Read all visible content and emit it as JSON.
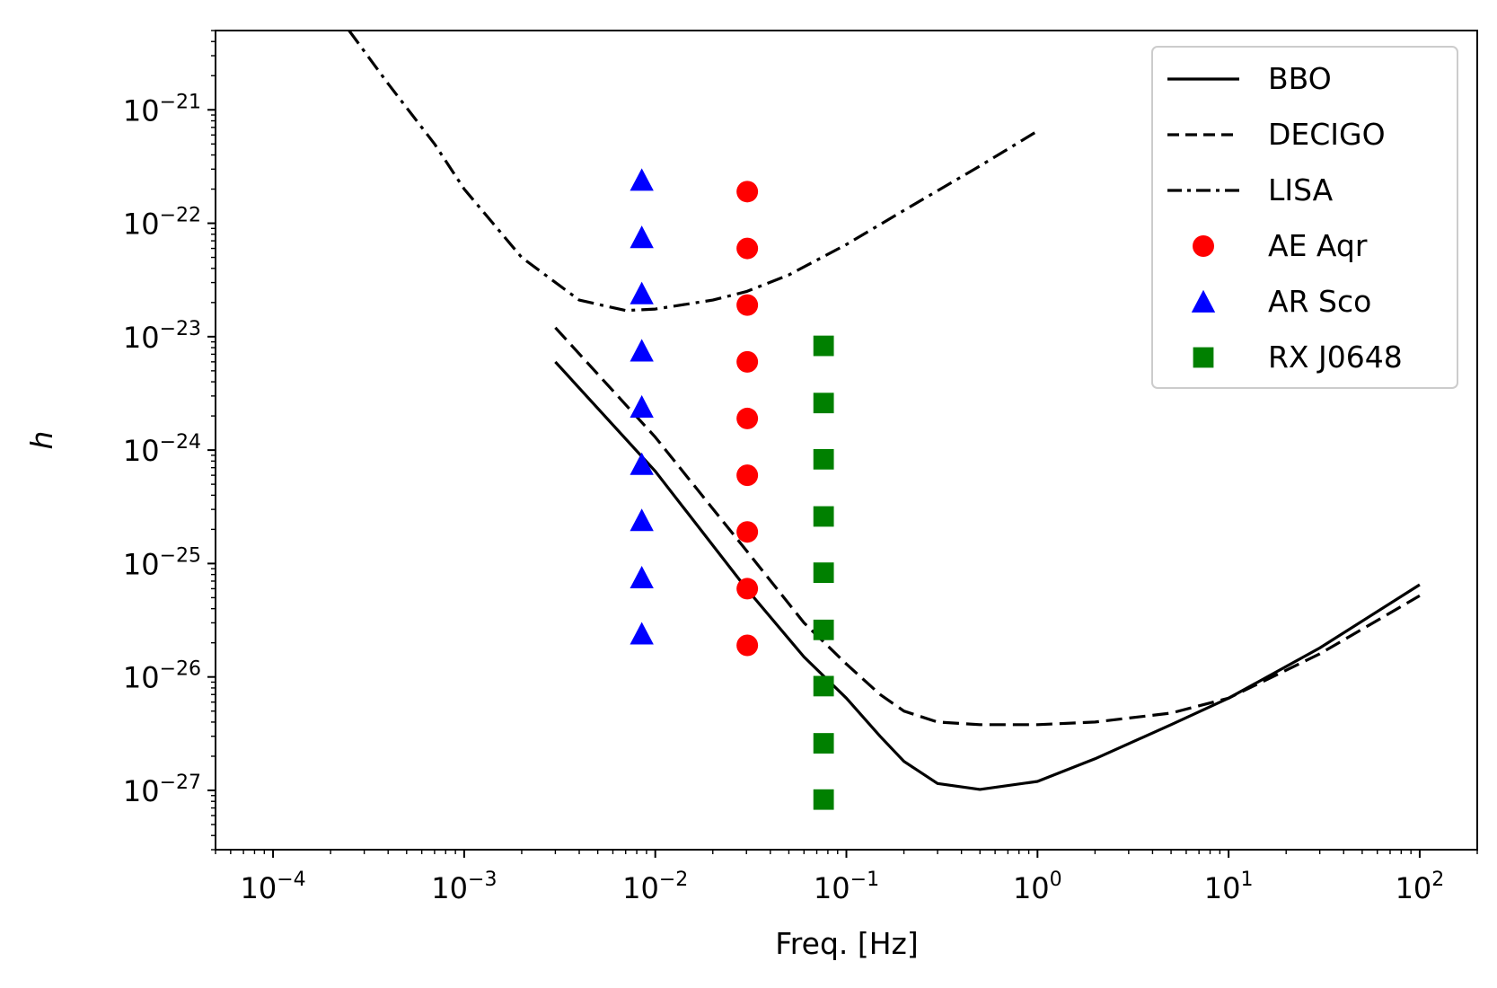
{
  "chart_data": {
    "type": "scatter",
    "title": "",
    "xlabel": "Freq. [Hz]",
    "ylabel": "h",
    "xscale": "log",
    "yscale": "log",
    "xlim": [
      5e-05,
      200
    ],
    "ylim": [
      3e-28,
      5e-21
    ],
    "x_ticks": [
      {
        "base": "10",
        "exp": "−4",
        "value": 0.0001
      },
      {
        "base": "10",
        "exp": "−3",
        "value": 0.001
      },
      {
        "base": "10",
        "exp": "−2",
        "value": 0.01
      },
      {
        "base": "10",
        "exp": "−1",
        "value": 0.1
      },
      {
        "base": "10",
        "exp": "0",
        "value": 1
      },
      {
        "base": "10",
        "exp": "1",
        "value": 10
      },
      {
        "base": "10",
        "exp": "2",
        "value": 100
      }
    ],
    "y_ticks": [
      {
        "base": "10",
        "exp": "−21",
        "value": 1e-21
      },
      {
        "base": "10",
        "exp": "−22",
        "value": 1e-22
      },
      {
        "base": "10",
        "exp": "−23",
        "value": 1e-23
      },
      {
        "base": "10",
        "exp": "−24",
        "value": 1e-24
      },
      {
        "base": "10",
        "exp": "−25",
        "value": 1e-25
      },
      {
        "base": "10",
        "exp": "−26",
        "value": 1e-26
      },
      {
        "base": "10",
        "exp": "−27",
        "value": 1e-27
      }
    ],
    "legend_position": "top-right",
    "series": [
      {
        "name": "BBO",
        "kind": "line",
        "style": "solid",
        "color": "#000000",
        "x": [
          0.003,
          0.01,
          0.03,
          0.06,
          0.1,
          0.15,
          0.2,
          0.3,
          0.5,
          1,
          2,
          5,
          10,
          30,
          100
        ],
        "y": [
          6e-24,
          6.5e-25,
          6e-26,
          1.5e-26,
          6.5e-27,
          3e-27,
          1.8e-27,
          1.15e-27,
          1.02e-27,
          1.2e-27,
          1.9e-27,
          3.8e-27,
          6.5e-27,
          1.8e-26,
          6.5e-26
        ]
      },
      {
        "name": "DECIGO",
        "kind": "line",
        "style": "dashed",
        "color": "#000000",
        "x": [
          0.003,
          0.01,
          0.03,
          0.06,
          0.1,
          0.15,
          0.2,
          0.3,
          0.5,
          1,
          2,
          5,
          10,
          30,
          100
        ],
        "y": [
          1.2e-23,
          1.3e-24,
          1.3e-25,
          3e-26,
          1.3e-26,
          7e-27,
          5e-27,
          4e-27,
          3.8e-27,
          3.8e-27,
          4e-27,
          4.8e-27,
          6.5e-27,
          1.6e-26,
          5.2e-26
        ]
      },
      {
        "name": "LISA",
        "kind": "line",
        "style": "dashdot",
        "color": "#000000",
        "x": [
          0.00025,
          0.0004,
          0.0007,
          0.001,
          0.002,
          0.004,
          0.007,
          0.01,
          0.02,
          0.03,
          0.05,
          0.1,
          0.2,
          0.5,
          1
        ],
        "y": [
          5e-21,
          1.7e-21,
          5e-22,
          2e-22,
          5e-23,
          2.1e-23,
          1.7e-23,
          1.75e-23,
          2.1e-23,
          2.5e-23,
          3.5e-23,
          6.5e-23,
          1.3e-22,
          3.2e-22,
          6.5e-22
        ]
      },
      {
        "name": "AE Aqr",
        "kind": "scatter",
        "marker": "circle",
        "color": "#ff0000",
        "x": [
          0.0303,
          0.0303,
          0.0303,
          0.0303,
          0.0303,
          0.0303,
          0.0303,
          0.0303,
          0.0303
        ],
        "y": [
          1.9e-22,
          6e-23,
          1.9e-23,
          6e-24,
          1.9e-24,
          6e-25,
          1.9e-25,
          6e-26,
          1.9e-26
        ]
      },
      {
        "name": "AR Sco",
        "kind": "scatter",
        "marker": "triangle",
        "color": "#0000ff",
        "x": [
          0.0085,
          0.0085,
          0.0085,
          0.0085,
          0.0085,
          0.0085,
          0.0085,
          0.0085,
          0.0085
        ],
        "y": [
          2.4e-22,
          7.5e-23,
          2.4e-23,
          7.5e-24,
          2.4e-24,
          7.5e-25,
          2.4e-25,
          7.5e-26,
          2.4e-26
        ]
      },
      {
        "name": "RX J0648",
        "kind": "scatter",
        "marker": "square",
        "color": "#008000",
        "x": [
          0.076,
          0.076,
          0.076,
          0.076,
          0.076,
          0.076,
          0.076,
          0.076,
          0.076
        ],
        "y": [
          8.3e-24,
          2.6e-24,
          8.3e-25,
          2.6e-25,
          8.3e-26,
          2.6e-26,
          8.3e-27,
          2.6e-27,
          8.3e-28
        ]
      }
    ]
  }
}
